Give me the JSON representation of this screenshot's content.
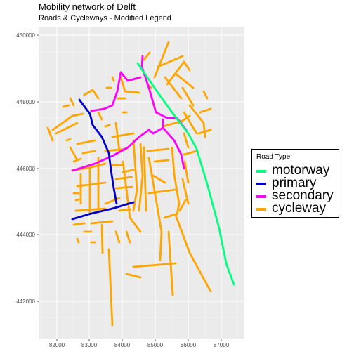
{
  "title": "Mobility network of Delft",
  "subtitle": "Roads & Cycleways - Modified Legend",
  "axes": {
    "x_ticks": [
      "82000",
      "83000",
      "84000",
      "85000",
      "86000",
      "87000"
    ],
    "y_ticks": [
      "450000",
      "448000",
      "446000",
      "444000",
      "442000"
    ]
  },
  "legend": {
    "title": "Road Type",
    "items": [
      {
        "label": "motorway",
        "color": "#00ff7f"
      },
      {
        "label": "primary",
        "color": "#0000cd"
      },
      {
        "label": "secondary",
        "color": "#ff00ff"
      },
      {
        "label": "cycleway",
        "color": "#ffa500"
      }
    ]
  },
  "colors": {
    "panel_background": "#ebebeb",
    "grid": "#ffffff"
  }
}
